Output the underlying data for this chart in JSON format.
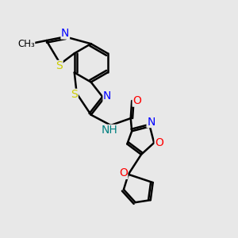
{
  "bg_color": "#e8e8e8",
  "bond_color": "#000000",
  "bond_width": 1.8,
  "atom_colors": {
    "N": "#0000ff",
    "O": "#ff0000",
    "S": "#cccc00",
    "H": "#008080"
  },
  "font_size": 9,
  "fig_size": [
    3.0,
    3.0
  ],
  "dpi": 100
}
